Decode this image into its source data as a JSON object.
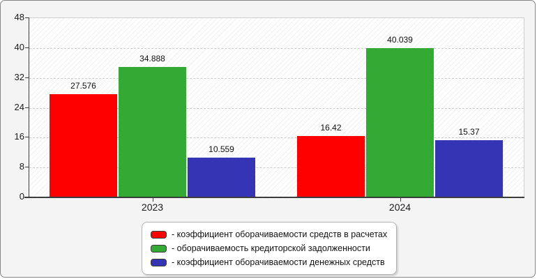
{
  "frame": {
    "background": "#f4f4f4",
    "border_color": "#858585"
  },
  "chart_data": {
    "type": "bar",
    "categories": [
      "2023",
      "2024"
    ],
    "series": [
      {
        "name": "коэффициент оборачиваемости средств в расчетах",
        "color": "#ff0000",
        "values": [
          27.576,
          16.42
        ],
        "labels": [
          "27.576",
          "16.42"
        ]
      },
      {
        "name": "оборачиваемость кредиторской задолженности",
        "color": "#33aa33",
        "values": [
          34.888,
          40.039
        ],
        "labels": [
          "34.888",
          "40.039"
        ]
      },
      {
        "name": "коэффициент оборачиваемости денежных средств",
        "color": "#3434b4",
        "values": [
          10.559,
          15.37
        ],
        "labels": [
          "10.559",
          "15.37"
        ]
      }
    ],
    "title": "",
    "xlabel": "",
    "ylabel": "",
    "ylim": [
      0,
      48
    ],
    "yticks": [
      0,
      8,
      16,
      24,
      32,
      40,
      48
    ],
    "grid": true,
    "grid_style": "dashed",
    "legend_position": "bottom-center",
    "legend_prefix": "- ",
    "legend_entries": [
      "- коэффициент оборачиваемости средств в расчетах",
      "- оборачиваемость кредиторской задолженности",
      "- коэффициент оборачиваемости денежных средств"
    ]
  }
}
